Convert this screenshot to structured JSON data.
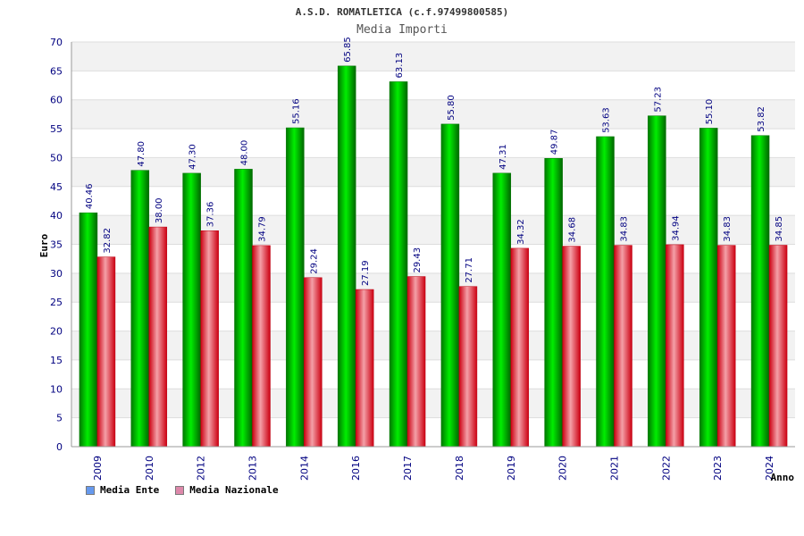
{
  "chart_data": {
    "type": "bar",
    "title": "A.S.D. ROMATLETICA (c.f.97499800585)",
    "subtitle": "Media Importi",
    "xlabel": "Anno",
    "ylabel": "Euro",
    "ylim": [
      0,
      70
    ],
    "ytick_step": 5,
    "categories": [
      "2009",
      "2010",
      "2012",
      "2013",
      "2014",
      "2016",
      "2017",
      "2018",
      "2019",
      "2020",
      "2021",
      "2022",
      "2023",
      "2024"
    ],
    "series": [
      {
        "name": "Media Ente",
        "legend_color": "#6699ee",
        "bar_color": "#00bb00",
        "values": [
          40.46,
          47.8,
          47.3,
          48.0,
          55.16,
          65.85,
          63.13,
          55.8,
          47.31,
          49.87,
          53.63,
          57.23,
          55.1,
          53.82
        ],
        "labels": [
          "40.46",
          "47.80",
          "47.30",
          "48.00",
          "55.16",
          "65.85",
          "63.13",
          "55.80",
          "47.31",
          "49.87",
          "53.63",
          "57.23",
          "55.10",
          "53.82"
        ]
      },
      {
        "name": "Media Nazionale",
        "legend_color": "#dd88aa",
        "bar_color": "#ee2233",
        "values": [
          32.82,
          38.0,
          37.36,
          34.79,
          29.24,
          27.19,
          29.43,
          27.71,
          34.32,
          34.68,
          34.83,
          34.94,
          34.83,
          34.85
        ],
        "labels": [
          "32.82",
          "38.00",
          "37.36",
          "34.79",
          "29.24",
          "27.19",
          "29.43",
          "27.71",
          "34.32",
          "34.68",
          "34.83",
          "34.94",
          "34.83",
          "34.85"
        ]
      }
    ],
    "yticks": [
      "0",
      "5",
      "10",
      "15",
      "20",
      "25",
      "30",
      "35",
      "40",
      "45",
      "50",
      "55",
      "60",
      "65",
      "70"
    ],
    "grid": true,
    "legend_position": "bottom-left"
  }
}
